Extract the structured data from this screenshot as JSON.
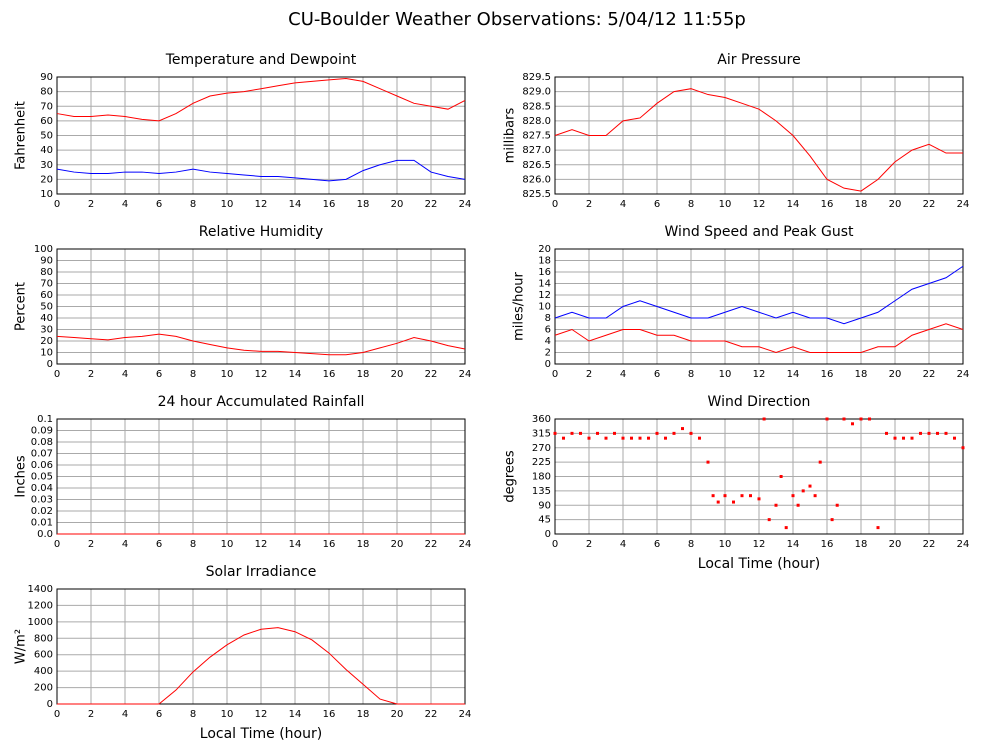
{
  "title": "CU-Boulder Weather Observations: 5/04/12 11:55p",
  "chart_data": [
    {
      "type": "line",
      "title": "Temperature and Dewpoint",
      "ylabel": "Fahrenheit",
      "x": [
        0,
        1,
        2,
        3,
        4,
        5,
        6,
        7,
        8,
        9,
        10,
        11,
        12,
        13,
        14,
        15,
        16,
        17,
        18,
        19,
        20,
        21,
        22,
        23,
        24
      ],
      "series": [
        {
          "color": "#ff0000",
          "values": [
            65,
            63,
            63,
            64,
            63,
            61,
            60,
            65,
            72,
            77,
            79,
            80,
            82,
            84,
            86,
            87,
            88,
            89,
            87,
            82,
            77,
            72,
            70,
            68,
            74
          ]
        },
        {
          "color": "#0000ff",
          "values": [
            27,
            25,
            24,
            24,
            25,
            25,
            24,
            25,
            27,
            25,
            24,
            23,
            22,
            22,
            21,
            20,
            19,
            20,
            26,
            30,
            33,
            33,
            25,
            22,
            20
          ]
        }
      ],
      "xlim": [
        0,
        24
      ],
      "xticks": [
        0,
        2,
        4,
        6,
        8,
        10,
        12,
        14,
        16,
        18,
        20,
        22,
        24
      ],
      "ylim": [
        10,
        90
      ],
      "yticks": [
        10,
        20,
        30,
        40,
        50,
        60,
        70,
        80,
        90
      ],
      "grid": true
    },
    {
      "type": "line",
      "title": "Air Pressure",
      "ylabel": "millibars",
      "x": [
        0,
        1,
        2,
        3,
        4,
        5,
        6,
        7,
        8,
        9,
        10,
        11,
        12,
        13,
        14,
        15,
        16,
        17,
        18,
        19,
        20,
        21,
        22,
        23,
        24
      ],
      "series": [
        {
          "color": "#ff0000",
          "values": [
            827.5,
            827.7,
            827.5,
            827.5,
            828.0,
            828.1,
            828.6,
            829.0,
            829.1,
            828.9,
            828.8,
            828.6,
            828.4,
            828.0,
            827.5,
            826.8,
            826.0,
            825.7,
            825.6,
            826.0,
            826.6,
            827.0,
            827.2,
            826.9,
            826.9
          ]
        }
      ],
      "xlim": [
        0,
        24
      ],
      "xticks": [
        0,
        2,
        4,
        6,
        8,
        10,
        12,
        14,
        16,
        18,
        20,
        22,
        24
      ],
      "ylim": [
        825.5,
        829.5
      ],
      "yticks": [
        825.5,
        {
          "value": 826,
          "label": "826.0"
        },
        826.5,
        {
          "value": 827,
          "label": "827.0"
        },
        827.5,
        {
          "value": 828,
          "label": "828.0"
        },
        828.5,
        {
          "value": 829,
          "label": "829.0"
        },
        829.5
      ],
      "grid": true
    },
    {
      "type": "line",
      "title": "Relative Humidity",
      "ylabel": "Percent",
      "x": [
        0,
        1,
        2,
        3,
        4,
        5,
        6,
        7,
        8,
        9,
        10,
        11,
        12,
        13,
        14,
        15,
        16,
        17,
        18,
        19,
        20,
        21,
        22,
        23,
        24
      ],
      "series": [
        {
          "color": "#ff0000",
          "values": [
            24,
            23,
            22,
            21,
            23,
            24,
            26,
            24,
            20,
            17,
            14,
            12,
            11,
            11,
            10,
            9,
            8,
            8,
            10,
            14,
            18,
            23,
            20,
            16,
            13
          ]
        }
      ],
      "xlim": [
        0,
        24
      ],
      "xticks": [
        0,
        2,
        4,
        6,
        8,
        10,
        12,
        14,
        16,
        18,
        20,
        22,
        24
      ],
      "ylim": [
        0,
        100
      ],
      "yticks": [
        0,
        10,
        20,
        30,
        40,
        50,
        60,
        70,
        80,
        90,
        100
      ],
      "grid": true
    },
    {
      "type": "line",
      "title": "Wind Speed and Peak Gust",
      "ylabel": "miles/hour",
      "x": [
        0,
        1,
        2,
        3,
        4,
        5,
        6,
        7,
        8,
        9,
        10,
        11,
        12,
        13,
        14,
        15,
        16,
        17,
        18,
        19,
        20,
        21,
        22,
        23,
        24
      ],
      "series": [
        {
          "color": "#0000ff",
          "values": [
            8,
            9,
            8,
            8,
            10,
            11,
            10,
            9,
            8,
            8,
            9,
            10,
            9,
            8,
            9,
            8,
            8,
            7,
            8,
            9,
            11,
            13,
            14,
            15,
            17
          ]
        },
        {
          "color": "#ff0000",
          "values": [
            5,
            6,
            4,
            5,
            6,
            6,
            5,
            5,
            4,
            4,
            4,
            3,
            3,
            2,
            3,
            2,
            2,
            2,
            2,
            3,
            3,
            5,
            6,
            7,
            6
          ]
        }
      ],
      "xlim": [
        0,
        24
      ],
      "xticks": [
        0,
        2,
        4,
        6,
        8,
        10,
        12,
        14,
        16,
        18,
        20,
        22,
        24
      ],
      "ylim": [
        0,
        20
      ],
      "yticks": [
        0,
        2,
        4,
        6,
        8,
        10,
        12,
        14,
        16,
        18,
        20
      ],
      "grid": true
    },
    {
      "type": "line",
      "title": "24 hour Accumulated Rainfall",
      "ylabel": "Inches",
      "x": [
        0,
        1,
        2,
        3,
        4,
        5,
        6,
        7,
        8,
        9,
        10,
        11,
        12,
        13,
        14,
        15,
        16,
        17,
        18,
        19,
        20,
        21,
        22,
        23,
        24
      ],
      "series": [
        {
          "color": "#ff0000",
          "values": [
            0,
            0,
            0,
            0,
            0,
            0,
            0,
            0,
            0,
            0,
            0,
            0,
            0,
            0,
            0,
            0,
            0,
            0,
            0,
            0,
            0,
            0,
            0,
            0,
            0
          ]
        }
      ],
      "xlim": [
        0,
        24
      ],
      "xticks": [
        0,
        2,
        4,
        6,
        8,
        10,
        12,
        14,
        16,
        18,
        20,
        22,
        24
      ],
      "ylim": [
        0,
        0.1
      ],
      "yticks": [
        {
          "value": 0,
          "label": "0.0"
        },
        0.01,
        0.02,
        0.03,
        0.04,
        0.05,
        0.06,
        0.07,
        0.08,
        0.09,
        0.1
      ],
      "grid": true
    },
    {
      "type": "scatter",
      "title": "Wind Direction",
      "ylabel": "degrees",
      "xlabel": "Local Time (hour)",
      "x": [
        0,
        0.5,
        1,
        1.5,
        2,
        2.5,
        3,
        3.5,
        4,
        4.5,
        5,
        5.5,
        6,
        6.5,
        7,
        7.5,
        8,
        8.5,
        9,
        9.3,
        9.6,
        10,
        10.5,
        11,
        11.5,
        12,
        12.3,
        12.6,
        13,
        13.3,
        13.6,
        14,
        14.3,
        14.6,
        15,
        15.3,
        15.6,
        16,
        16.3,
        16.6,
        17,
        17.5,
        18,
        18.5,
        19,
        19.5,
        20,
        20.5,
        21,
        21.5,
        22,
        22.5,
        23,
        23.5,
        24
      ],
      "series": [
        {
          "color": "#ff0000",
          "values": [
            315,
            300,
            315,
            315,
            300,
            315,
            300,
            315,
            300,
            300,
            300,
            300,
            315,
            300,
            315,
            330,
            315,
            300,
            225,
            120,
            100,
            120,
            100,
            120,
            120,
            110,
            360,
            45,
            90,
            180,
            20,
            120,
            90,
            135,
            150,
            120,
            225,
            360,
            45,
            90,
            360,
            345,
            360,
            360,
            20,
            315,
            300,
            300,
            300,
            315,
            315,
            315,
            315,
            300,
            270
          ]
        }
      ],
      "xlim": [
        0,
        24
      ],
      "xticks": [
        0,
        2,
        4,
        6,
        8,
        10,
        12,
        14,
        16,
        18,
        20,
        22,
        24
      ],
      "ylim": [
        0,
        360
      ],
      "yticks": [
        0,
        45,
        90,
        135,
        180,
        225,
        270,
        315,
        360
      ],
      "grid": true
    },
    {
      "type": "line",
      "title": "Solar Irradiance",
      "ylabel": "W/m²",
      "xlabel": "Local Time (hour)",
      "x": [
        0,
        1,
        2,
        3,
        4,
        5,
        6,
        7,
        8,
        9,
        10,
        11,
        12,
        13,
        14,
        15,
        16,
        17,
        18,
        19,
        20,
        21,
        22,
        23,
        24
      ],
      "series": [
        {
          "color": "#ff0000",
          "values": [
            0,
            0,
            0,
            0,
            0,
            0,
            0,
            170,
            390,
            570,
            720,
            840,
            910,
            930,
            880,
            780,
            620,
            420,
            240,
            60,
            0,
            0,
            0,
            0,
            0
          ]
        }
      ],
      "xlim": [
        0,
        24
      ],
      "xticks": [
        0,
        2,
        4,
        6,
        8,
        10,
        12,
        14,
        16,
        18,
        20,
        22,
        24
      ],
      "ylim": [
        0,
        1400
      ],
      "yticks": [
        0,
        200,
        400,
        600,
        800,
        1000,
        1200,
        1400
      ],
      "grid": true
    }
  ]
}
